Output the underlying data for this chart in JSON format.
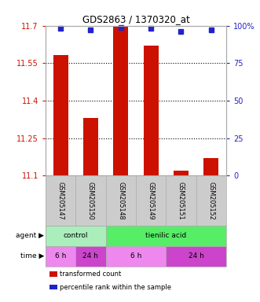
{
  "title": "GDS2863 / 1370320_at",
  "samples": [
    "GSM205147",
    "GSM205150",
    "GSM205148",
    "GSM205149",
    "GSM205151",
    "GSM205152"
  ],
  "bar_values": [
    11.582,
    11.33,
    11.7,
    11.62,
    11.12,
    11.17
  ],
  "percentile_values": [
    98,
    97,
    99,
    98,
    96,
    97
  ],
  "ylim_left": [
    11.1,
    11.7
  ],
  "ylim_right": [
    0,
    100
  ],
  "yticks_left": [
    11.1,
    11.25,
    11.4,
    11.55,
    11.7
  ],
  "yticks_right": [
    0,
    25,
    50,
    75,
    100
  ],
  "ytick_labels_left": [
    "11.1",
    "11.25",
    "11.4",
    "11.55",
    "11.7"
  ],
  "ytick_labels_right": [
    "0",
    "25",
    "50",
    "75",
    "100%"
  ],
  "bar_color": "#cc1100",
  "dot_color": "#2222cc",
  "agent_row": [
    {
      "label": "control",
      "start": 0,
      "end": 2,
      "color": "#aaeebb"
    },
    {
      "label": "tienilic acid",
      "start": 2,
      "end": 6,
      "color": "#55ee66"
    }
  ],
  "time_row": [
    {
      "label": "6 h",
      "start": 0,
      "end": 1,
      "color": "#ee88ee"
    },
    {
      "label": "24 h",
      "start": 1,
      "end": 2,
      "color": "#cc44cc"
    },
    {
      "label": "6 h",
      "start": 2,
      "end": 4,
      "color": "#ee88ee"
    },
    {
      "label": "24 h",
      "start": 4,
      "end": 6,
      "color": "#cc44cc"
    }
  ],
  "legend_items": [
    {
      "color": "#cc1100",
      "label": "transformed count"
    },
    {
      "color": "#2222cc",
      "label": "percentile rank within the sample"
    }
  ],
  "bar_width": 0.5,
  "background_color": "#ffffff",
  "spine_color": "#aaaaaa",
  "label_color_left": "#cc1100",
  "label_color_right": "#2222cc",
  "sample_box_color": "#cccccc"
}
